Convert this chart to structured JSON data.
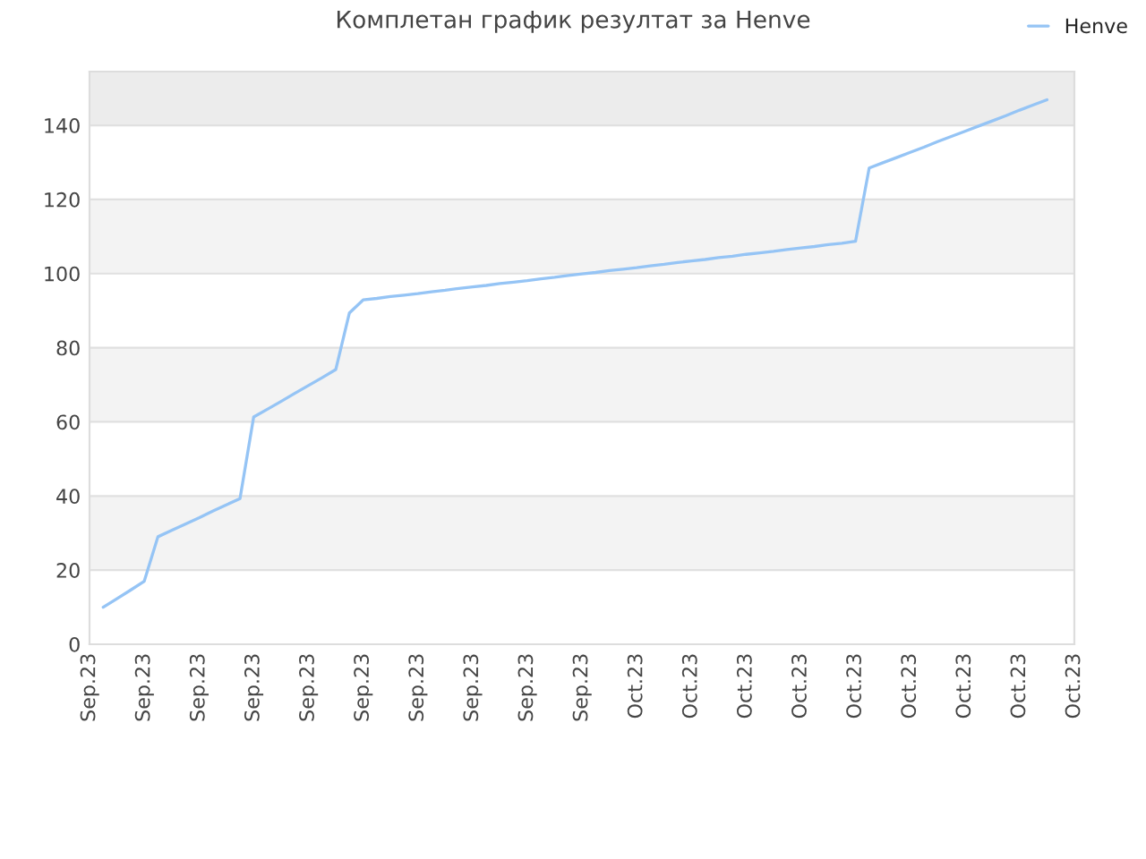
{
  "chart_data": {
    "type": "line",
    "title": "Комплетан график резултат за Henve",
    "categories": [
      "Sep.23",
      null,
      null,
      null,
      "Sep.23",
      null,
      null,
      null,
      "Sep.23",
      null,
      null,
      null,
      "Sep.23",
      null,
      null,
      null,
      "Sep.23",
      null,
      null,
      null,
      "Sep.23",
      null,
      null,
      null,
      "Sep.23",
      null,
      null,
      null,
      "Sep.23",
      null,
      null,
      null,
      "Sep.23",
      null,
      null,
      null,
      "Sep.23",
      null,
      null,
      null,
      "Oct.23",
      null,
      null,
      null,
      "Oct.23",
      null,
      null,
      null,
      "Oct.23",
      null,
      null,
      null,
      "Oct.23",
      null,
      null,
      null,
      "Oct.23",
      null,
      null,
      null,
      "Oct.23",
      null,
      null,
      null,
      "Oct.23",
      null,
      null,
      null,
      "Oct.23",
      null,
      null,
      null,
      "Oct.23"
    ],
    "series": [
      {
        "name": "Henve",
        "color": "#95c4f5",
        "values": [
          null,
          10.0,
          12.3,
          14.6,
          17.0,
          29.0,
          30.7,
          32.4,
          34.1,
          35.9,
          37.6,
          39.3,
          61.3,
          63.4,
          65.5,
          67.7,
          69.8,
          71.9,
          74.1,
          89.4,
          92.9,
          93.3,
          93.8,
          94.2,
          94.6,
          95.1,
          95.5,
          96.0,
          96.4,
          96.8,
          97.3,
          97.7,
          98.1,
          98.6,
          99.0,
          99.5,
          99.9,
          100.3,
          100.8,
          101.2,
          101.6,
          102.1,
          102.5,
          103.0,
          103.4,
          103.8,
          104.3,
          104.7,
          105.2,
          105.6,
          106.0,
          106.5,
          106.9,
          107.3,
          107.8,
          108.2,
          108.7,
          128.5,
          129.9,
          131.3,
          132.7,
          134.1,
          135.6,
          137.0,
          138.4,
          139.8,
          141.2,
          142.6,
          144.1,
          145.5,
          146.9,
          null,
          null
        ]
      }
    ],
    "ylim": [
      0,
      154.5
    ],
    "yticks": [
      0,
      20,
      40,
      60,
      80,
      100,
      120,
      140
    ],
    "bands": [
      {
        "axis": "y",
        "from": 20,
        "to": 40,
        "color": "#f3f3f3"
      },
      {
        "axis": "y",
        "from": 60,
        "to": 80,
        "color": "#f3f3f3"
      },
      {
        "axis": "y",
        "from": 100,
        "to": 120,
        "color": "#f3f3f3"
      },
      {
        "axis": "y",
        "from": 140,
        "to": 154.5,
        "color": "#ececec"
      }
    ],
    "grid": "y",
    "legend": "top right",
    "marker": "none",
    "line_style": "solid"
  }
}
